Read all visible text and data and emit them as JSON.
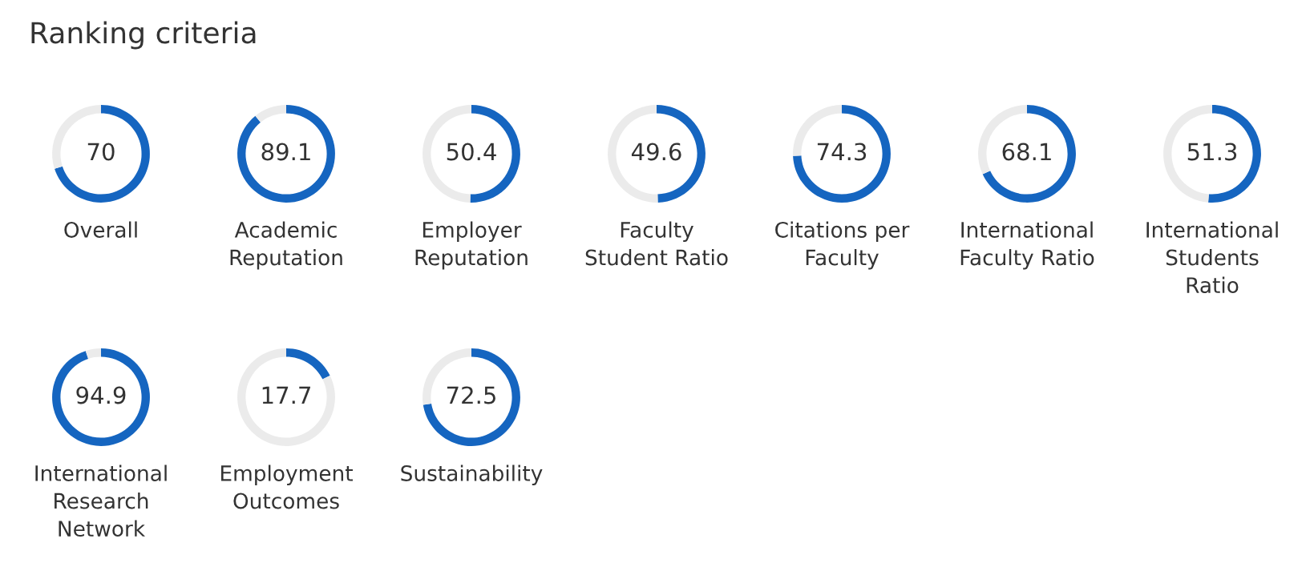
{
  "chart_data": [
    {
      "type": "other",
      "title": "Ranking criteria"
    },
    {
      "type": "donut",
      "title": "Overall",
      "values": [
        70,
        30
      ],
      "value_labels": [
        "70",
        null
      ],
      "colors": [
        "#1565c0",
        "#ebebeb"
      ]
    },
    {
      "type": "donut",
      "title": "Academic\nReputation",
      "values": [
        89.1,
        10.9
      ],
      "value_labels": [
        "89.1",
        null
      ],
      "colors": [
        "#1565c0",
        "#ebebeb"
      ]
    },
    {
      "type": "donut",
      "title": "Employer\nReputation",
      "values": [
        50.4,
        49.6
      ],
      "value_labels": [
        "50.4",
        null
      ],
      "colors": [
        "#1565c0",
        "#ebebeb"
      ]
    },
    {
      "type": "donut",
      "title": "Faculty\nStudent Ratio",
      "values": [
        49.6,
        50.4
      ],
      "value_labels": [
        "49.6",
        null
      ],
      "colors": [
        "#1565c0",
        "#ebebeb"
      ]
    },
    {
      "type": "donut",
      "title": "Citations per\nFaculty",
      "values": [
        74.3,
        25.7
      ],
      "value_labels": [
        "74.3",
        null
      ],
      "colors": [
        "#1565c0",
        "#ebebeb"
      ]
    },
    {
      "type": "donut",
      "title": "International\nFaculty Ratio",
      "values": [
        68.1,
        31.9
      ],
      "value_labels": [
        "68.1",
        null
      ],
      "colors": [
        "#1565c0",
        "#ebebeb"
      ]
    },
    {
      "type": "donut",
      "title": "International\nStudents\nRatio",
      "values": [
        51.3,
        48.7
      ],
      "value_labels": [
        "51.3",
        null
      ],
      "colors": [
        "#1565c0",
        "#ebebeb"
      ]
    },
    {
      "type": "donut",
      "title": "International\nResearch\nNetwork",
      "values": [
        94.9,
        5.1
      ],
      "value_labels": [
        "94.9",
        null
      ],
      "colors": [
        "#1565c0",
        "#ebebeb"
      ]
    },
    {
      "type": "donut",
      "title": "Employment\nOutcomes",
      "values": [
        17.7,
        82.3
      ],
      "value_labels": [
        "17.7",
        null
      ],
      "colors": [
        "#1565c0",
        "#ebebeb"
      ]
    },
    {
      "type": "donut",
      "title": "Sustainability",
      "values": [
        72.5,
        27.5
      ],
      "value_labels": [
        "72.5",
        null
      ],
      "colors": [
        "#1565c0",
        "#ebebeb"
      ]
    }
  ]
}
